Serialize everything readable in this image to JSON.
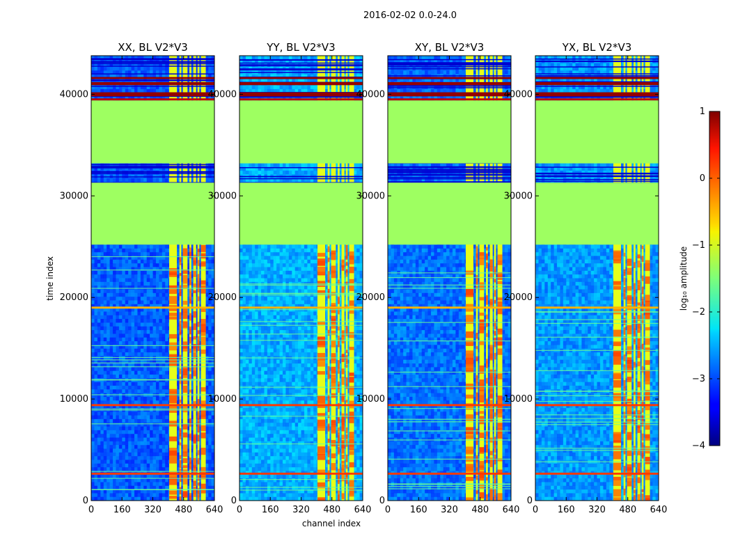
{
  "chart_data": {
    "type": "heatmap",
    "title": "2016-02-02 0.0-24.0",
    "xlabel": "channel index",
    "ylabel": "time index",
    "xlim": [
      0,
      640
    ],
    "ylim": [
      0,
      43800
    ],
    "xticks": [
      0,
      160,
      320,
      480,
      640
    ],
    "yticks": [
      0,
      10000,
      20000,
      30000,
      40000
    ],
    "panels": [
      {
        "title": "XX, BL V2*V3",
        "background_level": -2.9
      },
      {
        "title": "YY, BL V2*V3",
        "background_level": -2.5
      },
      {
        "title": "XY, BL V2*V3",
        "background_level": -2.8
      },
      {
        "title": "YX, BL V2*V3",
        "background_level": -2.6
      }
    ],
    "rfi_channel_range": [
      405,
      605
    ],
    "rfi_channel_bands": [
      [
        405,
        445
      ],
      [
        458,
        468
      ],
      [
        476,
        500
      ],
      [
        510,
        520
      ],
      [
        530,
        545
      ],
      [
        552,
        562
      ],
      [
        570,
        595
      ]
    ],
    "rfi_level": -1.0,
    "masked_time_ranges": [
      [
        25200,
        31300
      ],
      [
        33200,
        39400
      ]
    ],
    "masked_level": -1.35,
    "sparse_time_range": [
      31300,
      43800
    ],
    "bright_time_rows": [
      [
        2550,
        2750,
        0.1
      ],
      [
        9300,
        9500,
        0.1
      ],
      [
        18900,
        19100,
        -0.5
      ],
      [
        39400,
        39600,
        0.7
      ],
      [
        39800,
        40200,
        0.9
      ],
      [
        40900,
        41200,
        0.9
      ],
      [
        41500,
        41700,
        0.9
      ]
    ],
    "colorbar": {
      "label": "log₁₀ amplitude",
      "min": -4,
      "max": 1,
      "ticks": [
        1,
        0,
        -1,
        -2,
        -3,
        -4
      ],
      "tick_labels": [
        "1",
        "0",
        "−1",
        "−2",
        "−3",
        "−4"
      ],
      "colormap": "jet"
    }
  }
}
